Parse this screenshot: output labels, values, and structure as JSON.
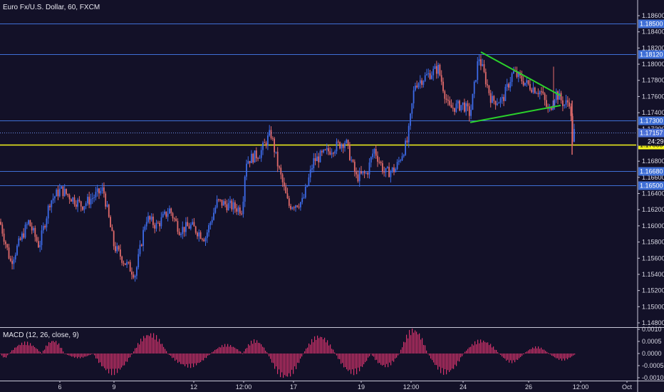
{
  "title": "Euro Fx/U.S. Dollar, 60, FXCM",
  "colors": {
    "background": "#131128",
    "up": "#3d6be8",
    "down": "#e06a6a",
    "hline": "#3f6fd6",
    "yellow": "#f5f51c",
    "triangle": "#2bd12b",
    "macd": "#d6336c",
    "axis_text": "#d8d8e4",
    "current_label_bg": "#4a6fd8"
  },
  "chart_data": [
    {
      "type": "candlestick",
      "title": "Euro Fx/U.S. Dollar, 60, FXCM",
      "ylim": [
        1.148,
        1.187
      ],
      "y_ticks": [
        "1.18600",
        "1.18400",
        "1.18200",
        "1.18000",
        "1.17800",
        "1.17600",
        "1.17400",
        "1.17200",
        "1.17000",
        "1.16800",
        "1.16600",
        "1.16400",
        "1.16200",
        "1.16000",
        "1.15800",
        "1.15600",
        "1.15400",
        "1.15200",
        "1.15000",
        "1.14800"
      ],
      "x_ticks": [
        "6",
        "9",
        "12",
        "12:00",
        "17",
        "19",
        "12:00",
        "24",
        "26",
        "12:00",
        "Oct"
      ],
      "horizontal_levels": [
        {
          "value": 1.185,
          "label": "1.18500",
          "style": "blue"
        },
        {
          "value": 1.1812,
          "label": "1.18120",
          "style": "blue"
        },
        {
          "value": 1.173,
          "label": "1.17300",
          "style": "blue"
        },
        {
          "value": 1.17157,
          "label": "1.17157",
          "style": "current"
        },
        {
          "value": 1.17,
          "label": "1.17000",
          "style": "yellow"
        },
        {
          "value": 1.1668,
          "label": "1.16680",
          "style": "blue"
        },
        {
          "value": 1.165,
          "label": "1.16500",
          "style": "blue"
        }
      ],
      "countdown_label": "24:29",
      "annotations": [
        {
          "type": "trendline",
          "from": [
            675,
            1.1815
          ],
          "to": [
            787,
            1.1761
          ]
        },
        {
          "type": "trendline",
          "from": [
            660,
            1.1728
          ],
          "to": [
            787,
            1.1749
          ]
        }
      ],
      "key_closes": [
        {
          "x": 0,
          "close": 1.1605
        },
        {
          "x": 15,
          "close": 1.1555
        },
        {
          "x": 40,
          "close": 1.1605
        },
        {
          "x": 55,
          "close": 1.1575
        },
        {
          "x": 70,
          "close": 1.163
        },
        {
          "x": 85,
          "close": 1.1645
        },
        {
          "x": 100,
          "close": 1.1635
        },
        {
          "x": 115,
          "close": 1.1625
        },
        {
          "x": 145,
          "close": 1.1645
        },
        {
          "x": 160,
          "close": 1.1575
        },
        {
          "x": 175,
          "close": 1.1555
        },
        {
          "x": 190,
          "close": 1.154
        },
        {
          "x": 205,
          "close": 1.161
        },
        {
          "x": 220,
          "close": 1.16
        },
        {
          "x": 238,
          "close": 1.162
        },
        {
          "x": 252,
          "close": 1.1595
        },
        {
          "x": 268,
          "close": 1.16
        },
        {
          "x": 288,
          "close": 1.1585
        },
        {
          "x": 305,
          "close": 1.163
        },
        {
          "x": 322,
          "close": 1.1625
        },
        {
          "x": 340,
          "close": 1.162
        },
        {
          "x": 345,
          "close": 1.168
        },
        {
          "x": 365,
          "close": 1.169
        },
        {
          "x": 380,
          "close": 1.1715
        },
        {
          "x": 390,
          "close": 1.1675
        },
        {
          "x": 405,
          "close": 1.1625
        },
        {
          "x": 425,
          "close": 1.163
        },
        {
          "x": 440,
          "close": 1.168
        },
        {
          "x": 465,
          "close": 1.1695
        },
        {
          "x": 485,
          "close": 1.1705
        },
        {
          "x": 500,
          "close": 1.166
        },
        {
          "x": 515,
          "close": 1.1665
        },
        {
          "x": 525,
          "close": 1.1695
        },
        {
          "x": 540,
          "close": 1.1665
        },
        {
          "x": 555,
          "close": 1.167
        },
        {
          "x": 572,
          "close": 1.1705
        },
        {
          "x": 582,
          "close": 1.1775
        },
        {
          "x": 598,
          "close": 1.1785
        },
        {
          "x": 615,
          "close": 1.1795
        },
        {
          "x": 630,
          "close": 1.1745
        },
        {
          "x": 650,
          "close": 1.175
        },
        {
          "x": 660,
          "close": 1.1738
        },
        {
          "x": 672,
          "close": 1.181
        },
        {
          "x": 690,
          "close": 1.1755
        },
        {
          "x": 705,
          "close": 1.1755
        },
        {
          "x": 720,
          "close": 1.179
        },
        {
          "x": 740,
          "close": 1.1775
        },
        {
          "x": 760,
          "close": 1.1765
        },
        {
          "x": 770,
          "close": 1.174
        },
        {
          "x": 780,
          "close": 1.1765
        },
        {
          "x": 792,
          "close": 1.175
        },
        {
          "x": 800,
          "close": 1.1755
        },
        {
          "x": 803,
          "close": 1.1705
        },
        {
          "x": 806,
          "close": 1.1716
        }
      ]
    },
    {
      "type": "bar",
      "title": "MACD (12, 26, close, 9)",
      "ylim": [
        -0.0012,
        0.0012
      ],
      "y_ticks": [
        "0.0010",
        "0.0005",
        "0.0000",
        "-0.0005",
        "-0.0010"
      ],
      "histogram_cycles": [
        {
          "from": 0,
          "to": 12,
          "peak": -0.0002
        },
        {
          "from": 12,
          "to": 58,
          "peak": 0.0005
        },
        {
          "from": 58,
          "to": 90,
          "peak": 0.0006
        },
        {
          "from": 90,
          "to": 130,
          "peak": -0.0002
        },
        {
          "from": 130,
          "to": 185,
          "peak": -0.0009
        },
        {
          "from": 185,
          "to": 235,
          "peak": 0.0009
        },
        {
          "from": 235,
          "to": 295,
          "peak": -0.0006
        },
        {
          "from": 295,
          "to": 340,
          "peak": 0.0004
        },
        {
          "from": 340,
          "to": 375,
          "peak": 0.0006
        },
        {
          "from": 375,
          "to": 425,
          "peak": -0.0011
        },
        {
          "from": 425,
          "to": 470,
          "peak": 0.0008
        },
        {
          "from": 470,
          "to": 520,
          "peak": -0.0009
        },
        {
          "from": 520,
          "to": 560,
          "peak": -0.0006
        },
        {
          "from": 560,
          "to": 600,
          "peak": 0.0011
        },
        {
          "from": 600,
          "to": 650,
          "peak": -0.0009
        },
        {
          "from": 650,
          "to": 700,
          "peak": 0.0006
        },
        {
          "from": 700,
          "to": 735,
          "peak": -0.0004
        },
        {
          "from": 735,
          "to": 770,
          "peak": 0.0003
        },
        {
          "from": 770,
          "to": 808,
          "peak": -0.0003
        }
      ]
    }
  ]
}
